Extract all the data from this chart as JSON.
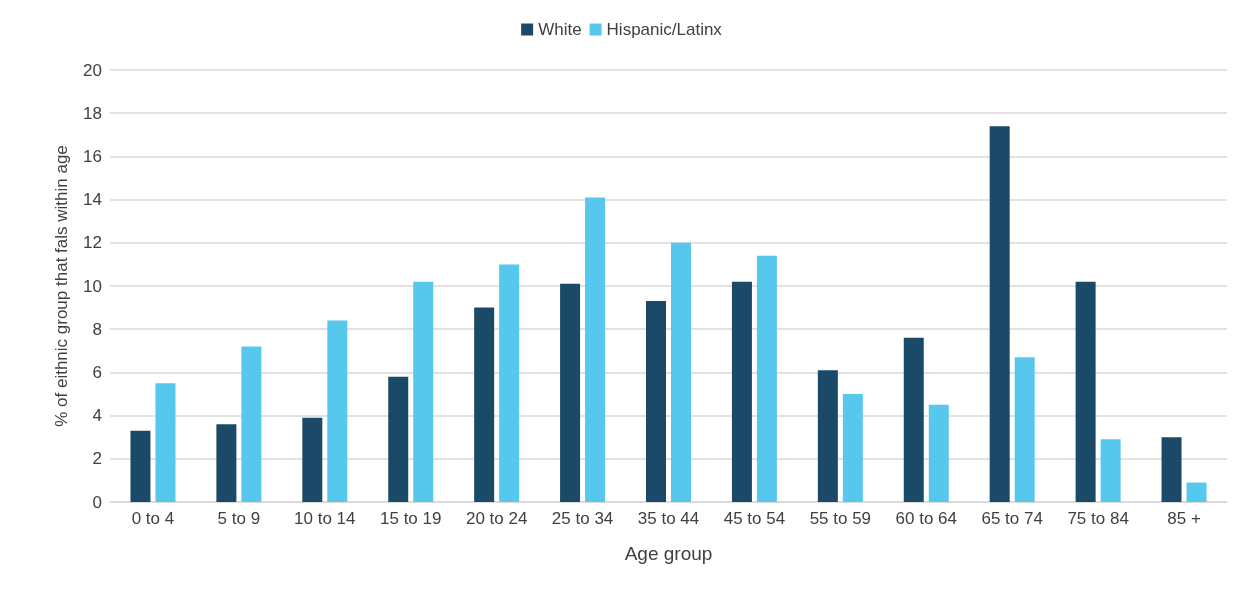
{
  "chart_data": {
    "type": "bar",
    "xlabel": "Age group",
    "ylabel": "% of eithnic group that fals within age",
    "categories": [
      "0 to 4",
      "5 to 9",
      "10 to 14",
      "15 to 19",
      "20 to 24",
      "25 to 34",
      "35 to 44",
      "45 to 54",
      "55 to 59",
      "60 to 64",
      "65 to 74",
      "75 to 84",
      "85 +"
    ],
    "series": [
      {
        "name": "White",
        "color": "#1a4a68",
        "values": [
          3.3,
          3.6,
          3.9,
          5.8,
          9.0,
          10.1,
          9.3,
          10.2,
          6.1,
          7.6,
          17.4,
          10.2,
          3.0
        ]
      },
      {
        "name": "Hispanic/Latinx",
        "color": "#56c8ee",
        "values": [
          5.5,
          7.2,
          8.4,
          10.2,
          11.0,
          14.1,
          12.0,
          11.4,
          5.0,
          4.5,
          6.7,
          2.9,
          0.9
        ]
      }
    ],
    "ylim": [
      0,
      20
    ],
    "yticks": [
      0,
      2,
      4,
      6,
      8,
      10,
      12,
      14,
      16,
      18,
      20
    ],
    "grid": "y",
    "legend": "top"
  }
}
